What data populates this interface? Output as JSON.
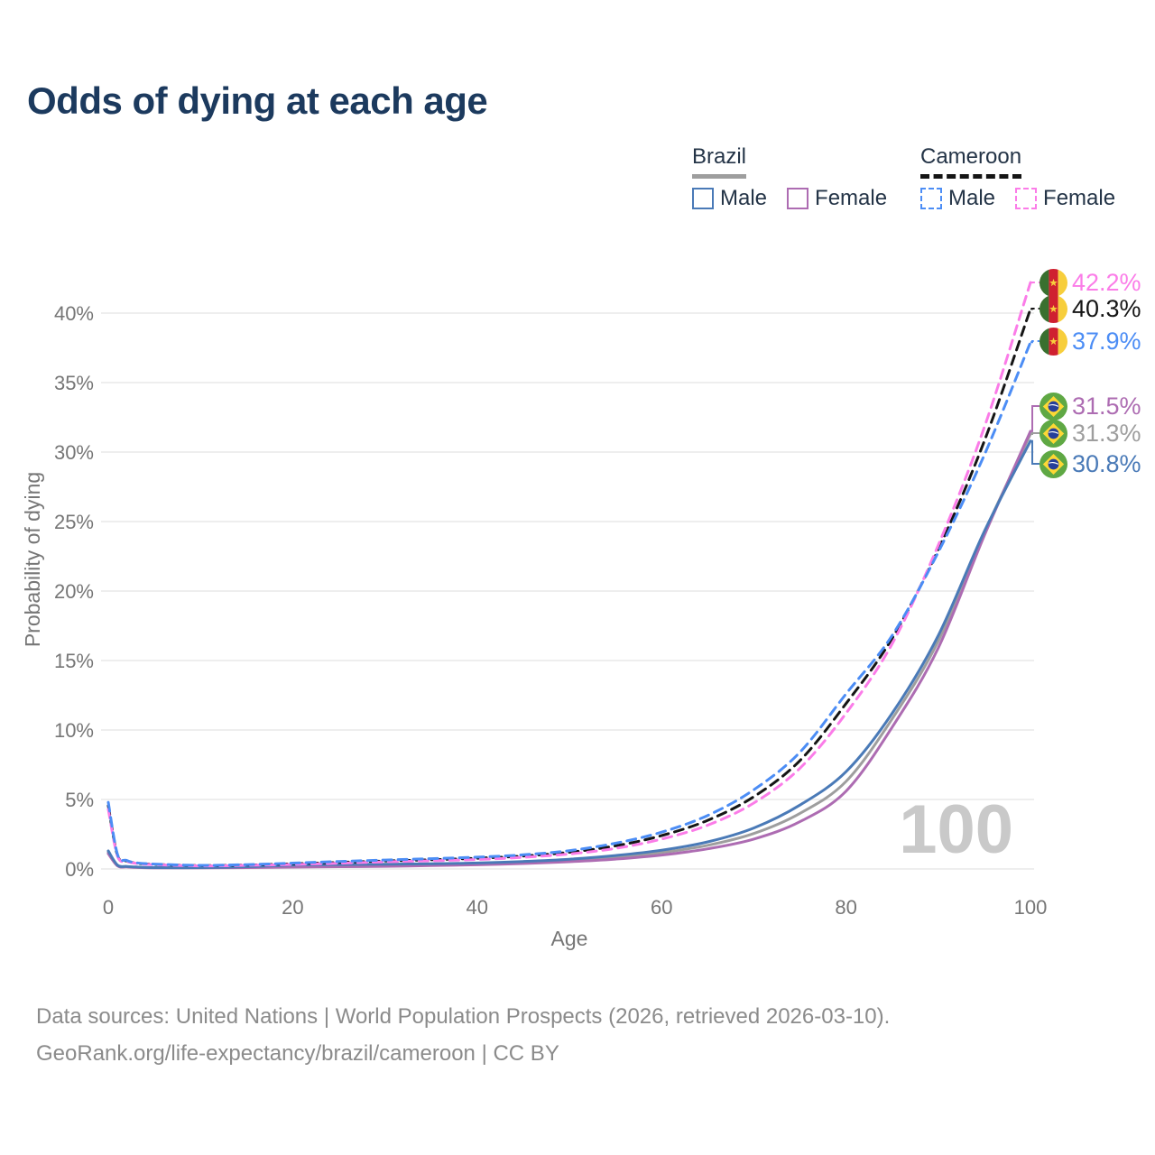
{
  "title": "Odds of dying at each age",
  "legend": {
    "groups": [
      {
        "country": "Brazil",
        "line_style": "solid",
        "items": [
          {
            "key": "brazil_male",
            "label": "Male"
          },
          {
            "key": "brazil_female",
            "label": "Female"
          }
        ]
      },
      {
        "country": "Cameroon",
        "line_style": "dashed",
        "items": [
          {
            "key": "cameroon_male",
            "label": "Male"
          },
          {
            "key": "cameroon_female",
            "label": "Female"
          }
        ]
      }
    ]
  },
  "colors": {
    "brazil_male": "#4a7ab7",
    "brazil_female": "#ad6cb2",
    "brazil_both": "#9e9e9e",
    "cameroon_male": "#4c8df5",
    "cameroon_female": "#fb7ce8",
    "cameroon_both": "#151515",
    "title_text": "#1c3a5e",
    "legend_text": "#243447",
    "axis_text": "#767676",
    "grid": "#e8e8e8",
    "watermark": "#c9c9c9",
    "footer_text": "#8b8b8b",
    "flag_brazil_green": "#5fa844",
    "flag_brazil_yellow": "#fdd835",
    "flag_brazil_blue": "#27409a",
    "flag_cameroon_green": "#39702f",
    "flag_cameroon_red": "#cf2030",
    "flag_cameroon_yellow": "#f7ce3c"
  },
  "chart_data": {
    "type": "line",
    "title": "Odds of dying at each age",
    "xlabel": "Age",
    "ylabel": "Probability of dying",
    "x_ticks": [
      0,
      20,
      40,
      60,
      80,
      100
    ],
    "y_ticks_percent": [
      0,
      5,
      10,
      15,
      20,
      25,
      30,
      35,
      40
    ],
    "xlim": [
      0,
      100
    ],
    "ylim_percent": [
      0,
      43
    ],
    "grid": "horizontal",
    "legend_position": "top-right",
    "hover_age_label": "100",
    "ages": [
      0,
      1,
      2,
      3,
      5,
      10,
      15,
      20,
      25,
      30,
      35,
      40,
      45,
      50,
      55,
      60,
      65,
      70,
      75,
      80,
      85,
      90,
      95,
      100
    ],
    "series": [
      {
        "key": "brazil_both",
        "name": "Brazil Both sexes",
        "country": "Brazil",
        "sex": "both",
        "dashed": false,
        "color": "#9e9e9e",
        "end_label": "31.3%",
        "values": [
          1.2,
          0.25,
          0.16,
          0.12,
          0.09,
          0.09,
          0.13,
          0.21,
          0.24,
          0.27,
          0.31,
          0.36,
          0.46,
          0.61,
          0.84,
          1.18,
          1.7,
          2.55,
          4.0,
          6.3,
          10.8,
          16.4,
          24.2,
          31.3
        ]
      },
      {
        "key": "brazil_female",
        "name": "Brazil Female",
        "country": "Brazil",
        "sex": "female",
        "dashed": false,
        "color": "#ad6cb2",
        "end_label": "31.5%",
        "values": [
          1.1,
          0.22,
          0.14,
          0.11,
          0.08,
          0.08,
          0.1,
          0.13,
          0.16,
          0.19,
          0.24,
          0.3,
          0.39,
          0.52,
          0.71,
          1.0,
          1.45,
          2.15,
          3.4,
          5.6,
          10.2,
          15.9,
          24.0,
          31.5
        ]
      },
      {
        "key": "brazil_male",
        "name": "Brazil Male",
        "country": "Brazil",
        "sex": "male",
        "dashed": false,
        "color": "#4a7ab7",
        "end_label": "30.8%",
        "values": [
          1.3,
          0.28,
          0.18,
          0.14,
          0.1,
          0.1,
          0.16,
          0.28,
          0.32,
          0.34,
          0.37,
          0.43,
          0.54,
          0.7,
          0.97,
          1.35,
          1.95,
          2.95,
          4.6,
          7.0,
          11.2,
          16.8,
          24.3,
          30.8
        ]
      },
      {
        "key": "cameroon_both",
        "name": "Cameroon Both sexes",
        "country": "Cameroon",
        "sex": "both",
        "dashed": true,
        "color": "#151515",
        "end_label": "40.3%",
        "values": [
          4.55,
          0.98,
          0.58,
          0.42,
          0.33,
          0.24,
          0.28,
          0.37,
          0.47,
          0.57,
          0.66,
          0.77,
          0.93,
          1.2,
          1.66,
          2.4,
          3.5,
          5.2,
          7.8,
          11.9,
          16.6,
          23.0,
          30.8,
          40.3
        ]
      },
      {
        "key": "cameroon_female",
        "name": "Cameroon Female",
        "country": "Cameroon",
        "sex": "female",
        "dashed": true,
        "color": "#fb7ce8",
        "end_label": "42.2%",
        "values": [
          4.3,
          0.92,
          0.55,
          0.4,
          0.31,
          0.22,
          0.26,
          0.32,
          0.41,
          0.51,
          0.59,
          0.68,
          0.84,
          1.08,
          1.48,
          2.15,
          3.15,
          4.75,
          7.25,
          11.2,
          16.2,
          23.3,
          31.8,
          42.2
        ]
      },
      {
        "key": "cameroon_male",
        "name": "Cameroon Male",
        "country": "Cameroon",
        "sex": "male",
        "dashed": true,
        "color": "#4c8df5",
        "end_label": "37.9%",
        "values": [
          4.8,
          1.05,
          0.62,
          0.45,
          0.35,
          0.26,
          0.31,
          0.42,
          0.54,
          0.64,
          0.74,
          0.85,
          1.02,
          1.32,
          1.85,
          2.65,
          3.85,
          5.7,
          8.4,
          12.6,
          16.8,
          22.8,
          29.8,
          37.9
        ]
      }
    ]
  },
  "footer": {
    "line1": "Data sources: United Nations | World Population Prospects (2026, retrieved 2026-03-10).",
    "line2": "GeoRank.org/life-expectancy/brazil/cameroon | CC BY"
  }
}
